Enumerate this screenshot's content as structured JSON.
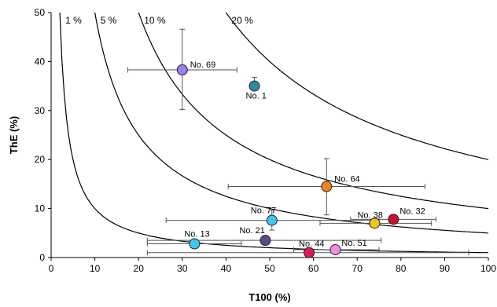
{
  "chart_data": {
    "type": "scatter",
    "xlabel": "T100 (%)",
    "ylabel": "ThE (%)",
    "xlim": [
      0,
      100
    ],
    "ylim": [
      0,
      50
    ],
    "x_ticks": [
      "0",
      "10",
      "20",
      "30",
      "40",
      "50",
      "60",
      "70",
      "80",
      "90",
      "100"
    ],
    "y_ticks": [
      "0",
      "10",
      "20",
      "30",
      "40",
      "50"
    ],
    "grid": false,
    "iso_curves": [
      {
        "label": "1 %",
        "product": 100
      },
      {
        "label": "5 %",
        "product": 500
      },
      {
        "label": "10 %",
        "product": 1000
      },
      {
        "label": "20 %",
        "product": 2000
      }
    ],
    "points": [
      {
        "label": "No. 69",
        "x": 30,
        "y": 38.3,
        "x_err": [
          17.5,
          42.5
        ],
        "y_err": [
          30.2,
          46.6
        ],
        "color": "#9b7ff0"
      },
      {
        "label": "No. 1",
        "x": 46.5,
        "y": 35.0,
        "x_err": null,
        "y_err": [
          34.2,
          36.8
        ],
        "color": "#2e8ba3"
      },
      {
        "label": "No. 64",
        "x": 63,
        "y": 14.5,
        "x_err": [
          40.5,
          85.5
        ],
        "y_err": [
          8.7,
          20.2
        ],
        "color": "#f58220"
      },
      {
        "label": "No. 77",
        "x": 50.5,
        "y": 7.6,
        "x_err": [
          26.3,
          75.0
        ],
        "y_err": [
          5.6,
          9.7
        ],
        "color": "#3cc8f0"
      },
      {
        "label": "No. 38",
        "x": 74.0,
        "y": 7.0,
        "x_err": [
          61.5,
          87.0
        ],
        "y_err": null,
        "color": "#f2c318"
      },
      {
        "label": "No. 32",
        "x": 78.3,
        "y": 7.8,
        "x_err": [
          68.5,
          88.0
        ],
        "y_err": null,
        "color": "#c8102e"
      },
      {
        "label": "No. 21",
        "x": 49.0,
        "y": 3.5,
        "x_err": [
          22.0,
          75.5
        ],
        "y_err": null,
        "color": "#5b4a8a"
      },
      {
        "label": "No. 13",
        "x": 32.8,
        "y": 2.8,
        "x_err": [
          22.0,
          43.5
        ],
        "y_err": null,
        "color": "#3cc8f0"
      },
      {
        "label": "No. 44",
        "x": 59.0,
        "y": 1.0,
        "x_err": [
          22.0,
          95.5
        ],
        "y_err": null,
        "color": "#e0185f"
      },
      {
        "label": "No. 51",
        "x": 65.0,
        "y": 1.6,
        "x_err": [
          55.5,
          75.0
        ],
        "y_err": null,
        "color": "#f08ce6"
      }
    ]
  }
}
